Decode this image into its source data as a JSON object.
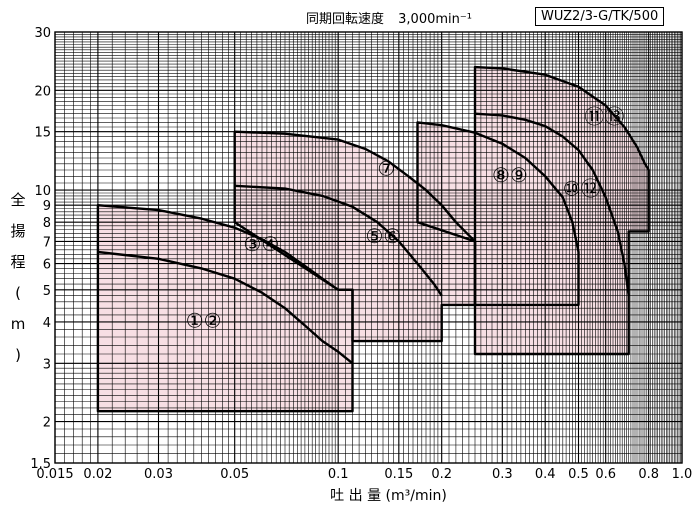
{
  "header": {
    "speed_label": "同期回転速度",
    "speed_value": "3,000min⁻¹",
    "model": "WUZ2/3-G/TK/500"
  },
  "chart_data": {
    "type": "area",
    "title": "",
    "xlabel": "吐 出 量 (m³/min)",
    "ylabel": "全 揚 程 (m)",
    "xscale": "log",
    "yscale": "log",
    "xlim": [
      0.015,
      1.0
    ],
    "ylim": [
      1.5,
      30
    ],
    "grid": true,
    "xticks": [
      {
        "v": 0.015,
        "label": "0.015"
      },
      {
        "v": 0.02,
        "label": "0.02"
      },
      {
        "v": 0.03,
        "label": "0.03"
      },
      {
        "v": 0.05,
        "label": "0.05"
      },
      {
        "v": 0.1,
        "label": "0.1"
      },
      {
        "v": 0.15,
        "label": "0.15"
      },
      {
        "v": 0.2,
        "label": "0.2"
      },
      {
        "v": 0.3,
        "label": "0.3"
      },
      {
        "v": 0.4,
        "label": "0.4"
      },
      {
        "v": 0.5,
        "label": "0.5"
      },
      {
        "v": 0.6,
        "label": "0.6"
      },
      {
        "v": 0.8,
        "label": "0.8"
      },
      {
        "v": 1.0,
        "label": "1.0"
      }
    ],
    "yticks": [
      {
        "v": 1.5,
        "label": "1.5"
      },
      {
        "v": 2,
        "label": "2"
      },
      {
        "v": 3,
        "label": "3"
      },
      {
        "v": 4,
        "label": "4"
      },
      {
        "v": 5,
        "label": "5"
      },
      {
        "v": 6,
        "label": "6"
      },
      {
        "v": 7,
        "label": "7"
      },
      {
        "v": 8,
        "label": "8"
      },
      {
        "v": 9,
        "label": "9"
      },
      {
        "v": 10,
        "label": "10"
      },
      {
        "v": 15,
        "label": "15"
      },
      {
        "v": 20,
        "label": "20"
      },
      {
        "v": 30,
        "label": "30"
      }
    ],
    "regions": [
      {
        "labels": [
          "①",
          "②"
        ],
        "label_pos": [
          0.036,
          4.0
        ],
        "outline": [
          [
            0.02,
            2.15
          ],
          [
            0.02,
            9.0
          ],
          [
            0.03,
            8.7
          ],
          [
            0.04,
            8.2
          ],
          [
            0.05,
            7.7
          ],
          [
            0.06,
            7.1
          ],
          [
            0.07,
            6.5
          ],
          [
            0.08,
            5.9
          ],
          [
            0.09,
            5.4
          ],
          [
            0.1,
            5.0
          ],
          [
            0.11,
            5.0
          ],
          [
            0.11,
            2.15
          ]
        ],
        "inner_curve": [
          [
            0.02,
            6.5
          ],
          [
            0.03,
            6.2
          ],
          [
            0.04,
            5.8
          ],
          [
            0.05,
            5.4
          ],
          [
            0.06,
            4.9
          ],
          [
            0.07,
            4.4
          ],
          [
            0.08,
            3.9
          ],
          [
            0.09,
            3.5
          ],
          [
            0.1,
            3.25
          ],
          [
            0.11,
            3.0
          ]
        ]
      },
      {
        "labels": [
          "③",
          "④"
        ],
        "label_pos": [
          0.053,
          6.8
        ],
        "outline": [
          [
            0.05,
            8.0
          ],
          [
            0.05,
            15.0
          ],
          [
            0.07,
            14.8
          ],
          [
            0.1,
            14.2
          ],
          [
            0.12,
            13.3
          ],
          [
            0.14,
            12.2
          ],
          [
            0.16,
            11.0
          ],
          [
            0.18,
            10.0
          ],
          [
            0.2,
            9.0
          ],
          [
            0.22,
            8.0
          ],
          [
            0.24,
            7.3
          ],
          [
            0.25,
            7.0
          ],
          [
            0.25,
            4.5
          ],
          [
            0.2,
            4.5
          ],
          [
            0.2,
            3.5
          ],
          [
            0.11,
            3.5
          ],
          [
            0.11,
            5.0
          ],
          [
            0.1,
            5.0
          ]
        ]
      },
      {
        "labels": [
          "⑤",
          "⑥"
        ],
        "label_pos": [
          0.12,
          7.2
        ],
        "inner_curve": [
          [
            0.05,
            10.3
          ],
          [
            0.07,
            10.1
          ],
          [
            0.09,
            9.6
          ],
          [
            0.11,
            8.9
          ],
          [
            0.13,
            8.0
          ],
          [
            0.15,
            7.0
          ],
          [
            0.17,
            6.0
          ],
          [
            0.19,
            5.2
          ],
          [
            0.2,
            4.8
          ]
        ]
      },
      {
        "labels": [
          "⑦"
        ],
        "label_pos": [
          0.13,
          11.5
        ]
      },
      {
        "labels": [
          "⑧",
          "⑨"
        ],
        "label_pos": [
          0.28,
          11.0
        ],
        "outline": [
          [
            0.17,
            8.0
          ],
          [
            0.17,
            16.0
          ],
          [
            0.2,
            15.7
          ],
          [
            0.25,
            14.9
          ],
          [
            0.3,
            13.8
          ],
          [
            0.35,
            12.5
          ],
          [
            0.4,
            11.0
          ],
          [
            0.45,
            9.5
          ],
          [
            0.48,
            8.0
          ],
          [
            0.5,
            6.5
          ],
          [
            0.5,
            4.5
          ],
          [
            0.25,
            4.5
          ],
          [
            0.25,
            7.0
          ]
        ]
      },
      {
        "labels": [
          "⑩",
          "⑫"
        ],
        "label_pos": [
          0.45,
          10.0
        ],
        "outline": [
          [
            0.25,
            8.0
          ],
          [
            0.25,
            23.5
          ],
          [
            0.3,
            23.3
          ],
          [
            0.4,
            22.3
          ],
          [
            0.5,
            20.5
          ],
          [
            0.6,
            18.0
          ],
          [
            0.68,
            15.5
          ],
          [
            0.74,
            13.5
          ],
          [
            0.78,
            12.0
          ],
          [
            0.8,
            11.5
          ],
          [
            0.8,
            7.5
          ],
          [
            0.7,
            7.5
          ],
          [
            0.7,
            3.2
          ],
          [
            0.25,
            3.2
          ]
        ],
        "inner_curve": [
          [
            0.25,
            17.0
          ],
          [
            0.3,
            16.8
          ],
          [
            0.35,
            16.3
          ],
          [
            0.4,
            15.6
          ],
          [
            0.45,
            14.5
          ],
          [
            0.5,
            13.2
          ],
          [
            0.55,
            11.5
          ],
          [
            0.6,
            9.5
          ],
          [
            0.65,
            7.5
          ],
          [
            0.68,
            6.0
          ],
          [
            0.7,
            4.8
          ]
        ]
      },
      {
        "labels": [
          "⑪",
          "⑬"
        ],
        "label_pos": [
          0.52,
          16.5
        ]
      }
    ],
    "colors": {
      "fill": "#f7dfe4",
      "grid": "#000000",
      "outline": "#000000",
      "background": "#ffffff"
    }
  }
}
